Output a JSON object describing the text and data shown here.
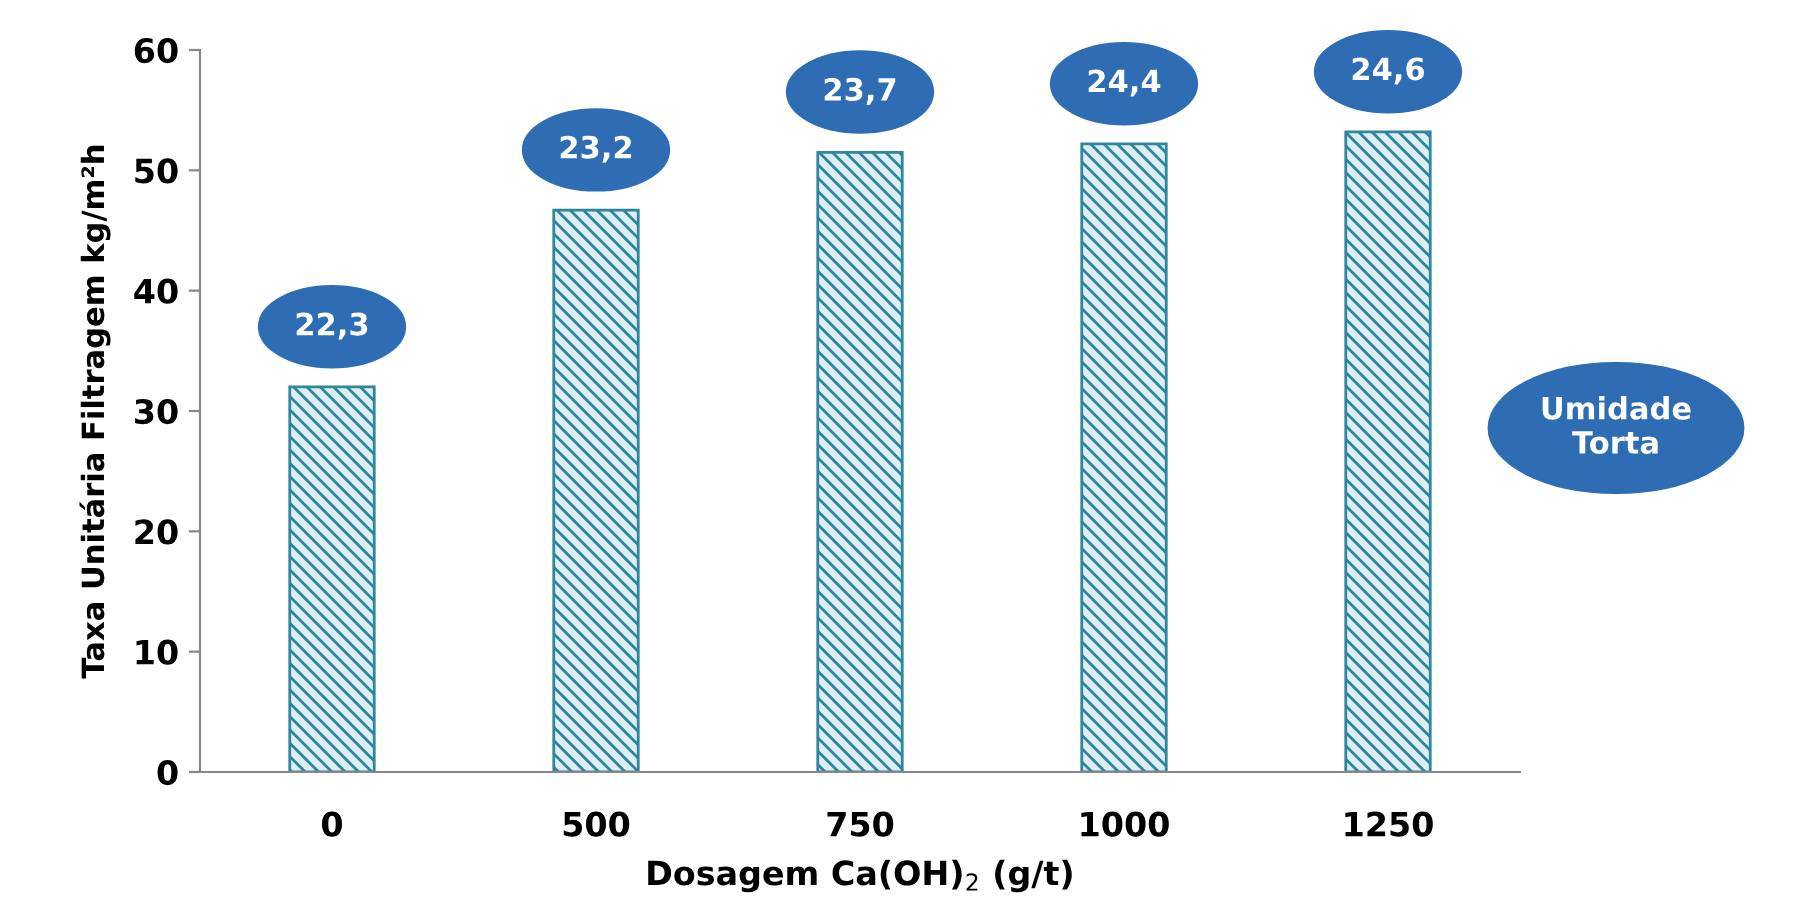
{
  "chart_data": {
    "type": "bar",
    "categories": [
      "0",
      "500",
      "750",
      "1000",
      "1250"
    ],
    "values": [
      32.0,
      46.7,
      51.5,
      52.2,
      53.2
    ],
    "color": "#31859c",
    "ylim": [
      0,
      60
    ],
    "yticks": [
      0,
      10,
      20,
      30,
      40,
      50,
      60
    ],
    "grid": false,
    "xlabel": "Dosagem Ca(OH)$_{2}$ (g/t)",
    "ylabel": "Taxa Unitária Filtragem kg/m²h",
    "annotations": [
      "22,3",
      "23,2",
      "23,7",
      "24,4",
      "24,6",
      "Umidade\nTorta"
    ]
  }
}
